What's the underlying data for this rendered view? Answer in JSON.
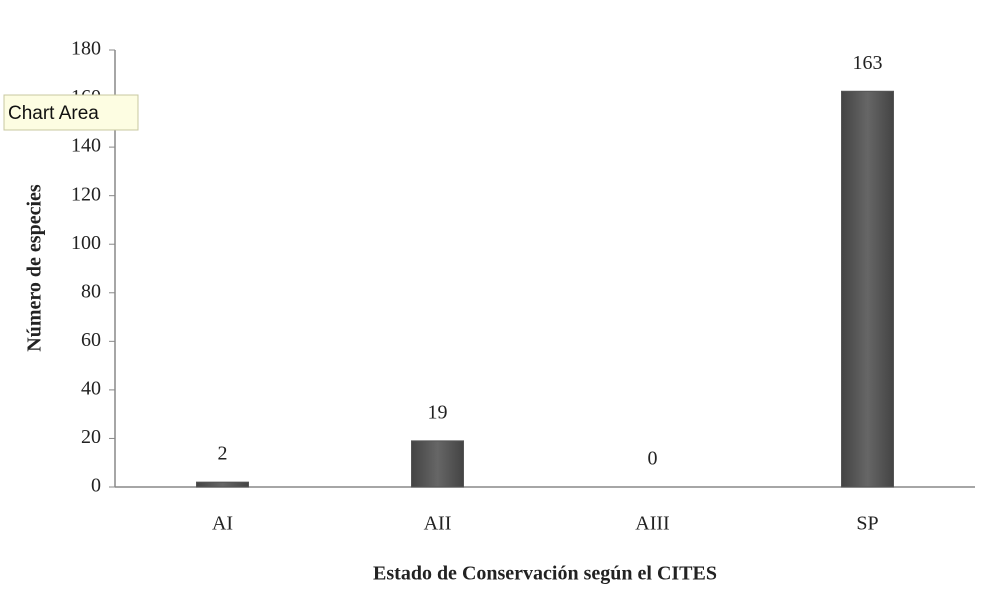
{
  "chart_data": {
    "type": "bar",
    "categories": [
      "AI",
      "AII",
      "AIII",
      "SP"
    ],
    "values": [
      2,
      19,
      0,
      163
    ],
    "color": "#555555",
    "x_label": "Estado de Conservación según el CITES",
    "y_label": "Número de especies",
    "ylim": [
      0,
      180
    ],
    "yticks": [
      0,
      20,
      40,
      60,
      80,
      100,
      120,
      140,
      160,
      180
    ],
    "grid": false,
    "tooltip": "Chart Area"
  }
}
